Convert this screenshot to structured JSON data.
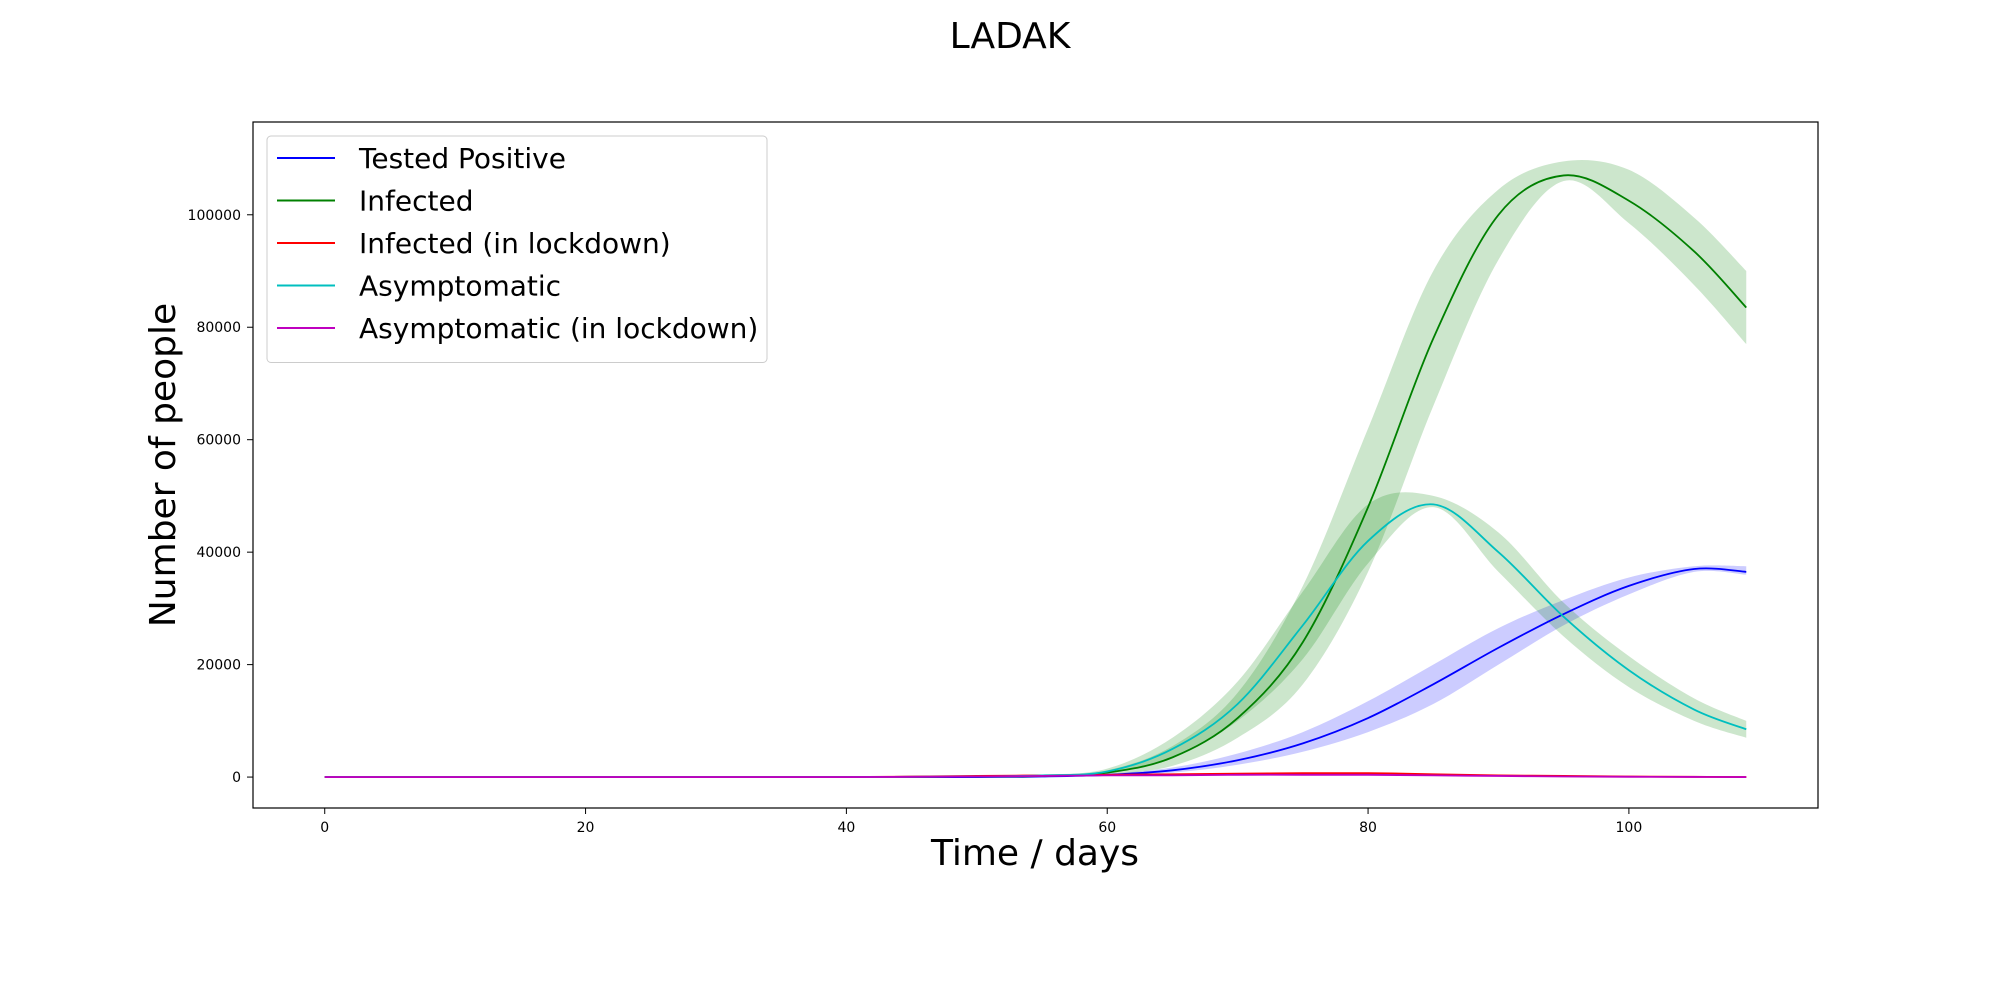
{
  "chart_data": {
    "type": "line",
    "title": "LADAK",
    "xlabel": "Time / days",
    "ylabel": "Number of people",
    "xlim": [
      -5.5,
      114.5
    ],
    "ylim": [
      -5500,
      116500
    ],
    "x_ticks": [
      0,
      20,
      40,
      60,
      80,
      100
    ],
    "y_ticks": [
      0,
      20000,
      40000,
      60000,
      80000,
      100000
    ],
    "grid": false,
    "legend_position": "upper-left",
    "series": [
      {
        "name": "Tested Positive",
        "color": "#0000ff",
        "band_color": "#0000ff",
        "x": [
          0,
          10,
          20,
          30,
          40,
          50,
          55,
          60,
          65,
          70,
          75,
          80,
          85,
          90,
          95,
          100,
          105,
          109
        ],
        "values": [
          0,
          0,
          0,
          0,
          0,
          0,
          100,
          400,
          1200,
          3000,
          6000,
          10500,
          16500,
          23000,
          29000,
          34000,
          37000,
          36500
        ],
        "lower": [
          0,
          0,
          0,
          0,
          0,
          0,
          80,
          300,
          800,
          2200,
          4500,
          8000,
          13000,
          20000,
          27000,
          32500,
          36500,
          36000
        ],
        "upper": [
          0,
          0,
          0,
          0,
          0,
          0,
          150,
          600,
          1700,
          4200,
          8000,
          13500,
          20000,
          26500,
          31500,
          35500,
          37500,
          37500
        ]
      },
      {
        "name": "Infected",
        "color": "#008000",
        "band_color": "#008000",
        "x": [
          0,
          10,
          20,
          30,
          40,
          50,
          55,
          60,
          65,
          70,
          75,
          80,
          85,
          90,
          95,
          100,
          105,
          109
        ],
        "values": [
          0,
          0,
          0,
          0,
          0,
          100,
          200,
          800,
          3500,
          10500,
          24000,
          48000,
          78000,
          100000,
          107000,
          102500,
          93500,
          83500
        ],
        "lower": [
          0,
          0,
          0,
          0,
          0,
          50,
          100,
          500,
          2000,
          7000,
          16500,
          36500,
          66000,
          92000,
          106000,
          98500,
          87500,
          77000
        ],
        "upper": [
          0,
          0,
          0,
          0,
          0,
          150,
          300,
          1200,
          5500,
          15000,
          34000,
          62000,
          90000,
          104500,
          109500,
          108000,
          99500,
          90000
        ]
      },
      {
        "name": "Infected (in lockdown)",
        "color": "#ff0000",
        "x": [
          0,
          10,
          20,
          30,
          40,
          50,
          55,
          60,
          65,
          70,
          75,
          80,
          85,
          90,
          95,
          100,
          105,
          109
        ],
        "values": [
          0,
          0,
          0,
          0,
          0,
          200,
          300,
          400,
          500,
          600,
          700,
          700,
          500,
          300,
          200,
          100,
          50,
          0
        ]
      },
      {
        "name": "Asymptomatic",
        "color": "#00bfbf",
        "band_color": "#008000",
        "x": [
          0,
          10,
          20,
          30,
          40,
          50,
          55,
          60,
          65,
          70,
          75,
          80,
          85,
          90,
          95,
          100,
          105,
          109
        ],
        "values": [
          0,
          0,
          0,
          0,
          0,
          100,
          300,
          1000,
          5000,
          13000,
          27000,
          42000,
          48500,
          40000,
          28500,
          19000,
          12000,
          8500
        ],
        "lower": [
          0,
          0,
          0,
          0,
          0,
          50,
          200,
          700,
          3500,
          10000,
          21000,
          38000,
          48000,
          36500,
          25000,
          16000,
          10000,
          7000
        ],
        "upper": [
          0,
          0,
          0,
          0,
          0,
          150,
          400,
          1500,
          7000,
          17000,
          33000,
          48500,
          50000,
          43500,
          31000,
          21500,
          14000,
          10000
        ]
      },
      {
        "name": "Asymptomatic (in lockdown)",
        "color": "#bf00bf",
        "x": [
          0,
          10,
          20,
          30,
          40,
          50,
          55,
          60,
          65,
          70,
          75,
          80,
          85,
          90,
          95,
          100,
          105,
          109
        ],
        "values": [
          0,
          0,
          0,
          0,
          0,
          100,
          200,
          300,
          300,
          400,
          400,
          400,
          300,
          200,
          100,
          50,
          20,
          0
        ]
      }
    ]
  }
}
